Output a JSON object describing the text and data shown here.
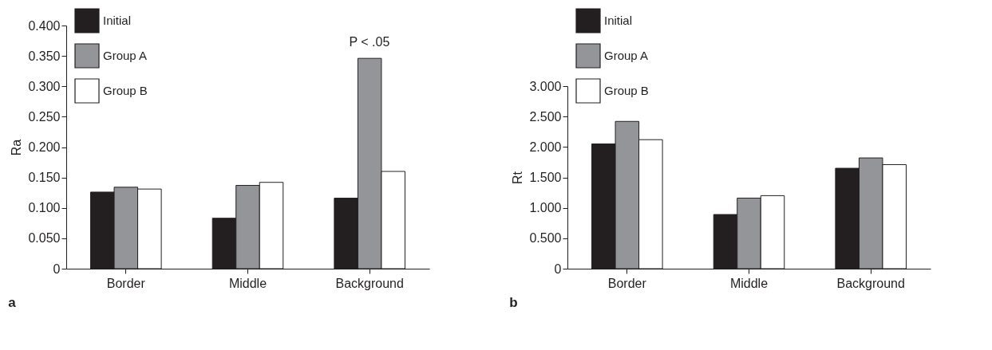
{
  "chart_data": [
    {
      "type": "bar",
      "ylabel": "Ra",
      "categories": [
        "Border",
        "Middle",
        "Background"
      ],
      "series": [
        {
          "name": "Initial",
          "color": "#231f20",
          "values": [
            0.126,
            0.083,
            0.116
          ]
        },
        {
          "name": "Group A",
          "color": "#939598",
          "values": [
            0.134,
            0.137,
            0.346
          ]
        },
        {
          "name": "Group B",
          "color": "#ffffff",
          "values": [
            0.131,
            0.142,
            0.16
          ]
        }
      ],
      "ylim": [
        0,
        0.4
      ],
      "yticks": [
        0,
        {
          "value": 0.05,
          "label": "0.050"
        },
        {
          "value": 0.1,
          "label": "0.100"
        },
        {
          "value": 0.15,
          "label": "0.150"
        },
        {
          "value": 0.2,
          "label": "0.200"
        },
        {
          "value": 0.25,
          "label": "0.250"
        },
        {
          "value": 0.3,
          "label": "0.300"
        },
        {
          "value": 0.35,
          "label": "0.350"
        },
        {
          "value": 0.4,
          "label": "0.400"
        }
      ],
      "annotations": [
        "P < .05",
        "a"
      ],
      "legend": "top left",
      "grid": false
    },
    {
      "type": "bar",
      "ylabel": "Rt",
      "categories": [
        "Border",
        "Middle",
        "Background"
      ],
      "series": [
        {
          "name": "Initial",
          "color": "#231f20",
          "values": [
            2.05,
            0.89,
            1.65
          ]
        },
        {
          "name": "Group A",
          "color": "#939598",
          "values": [
            2.42,
            1.16,
            1.82
          ]
        },
        {
          "name": "Group B",
          "color": "#ffffff",
          "values": [
            2.12,
            1.2,
            1.71
          ]
        }
      ],
      "ylim": [
        0,
        3
      ],
      "yticks": [
        0,
        {
          "value": 0.5,
          "label": "0.500"
        },
        {
          "value": 1,
          "label": "1.000"
        },
        {
          "value": 1.5,
          "label": "1.500"
        },
        {
          "value": 2,
          "label": "2.000"
        },
        {
          "value": 2.5,
          "label": "2.500"
        },
        {
          "value": 3,
          "label": "3.000"
        }
      ],
      "annotations": [
        "b"
      ],
      "legend": "top left",
      "grid": false
    }
  ]
}
